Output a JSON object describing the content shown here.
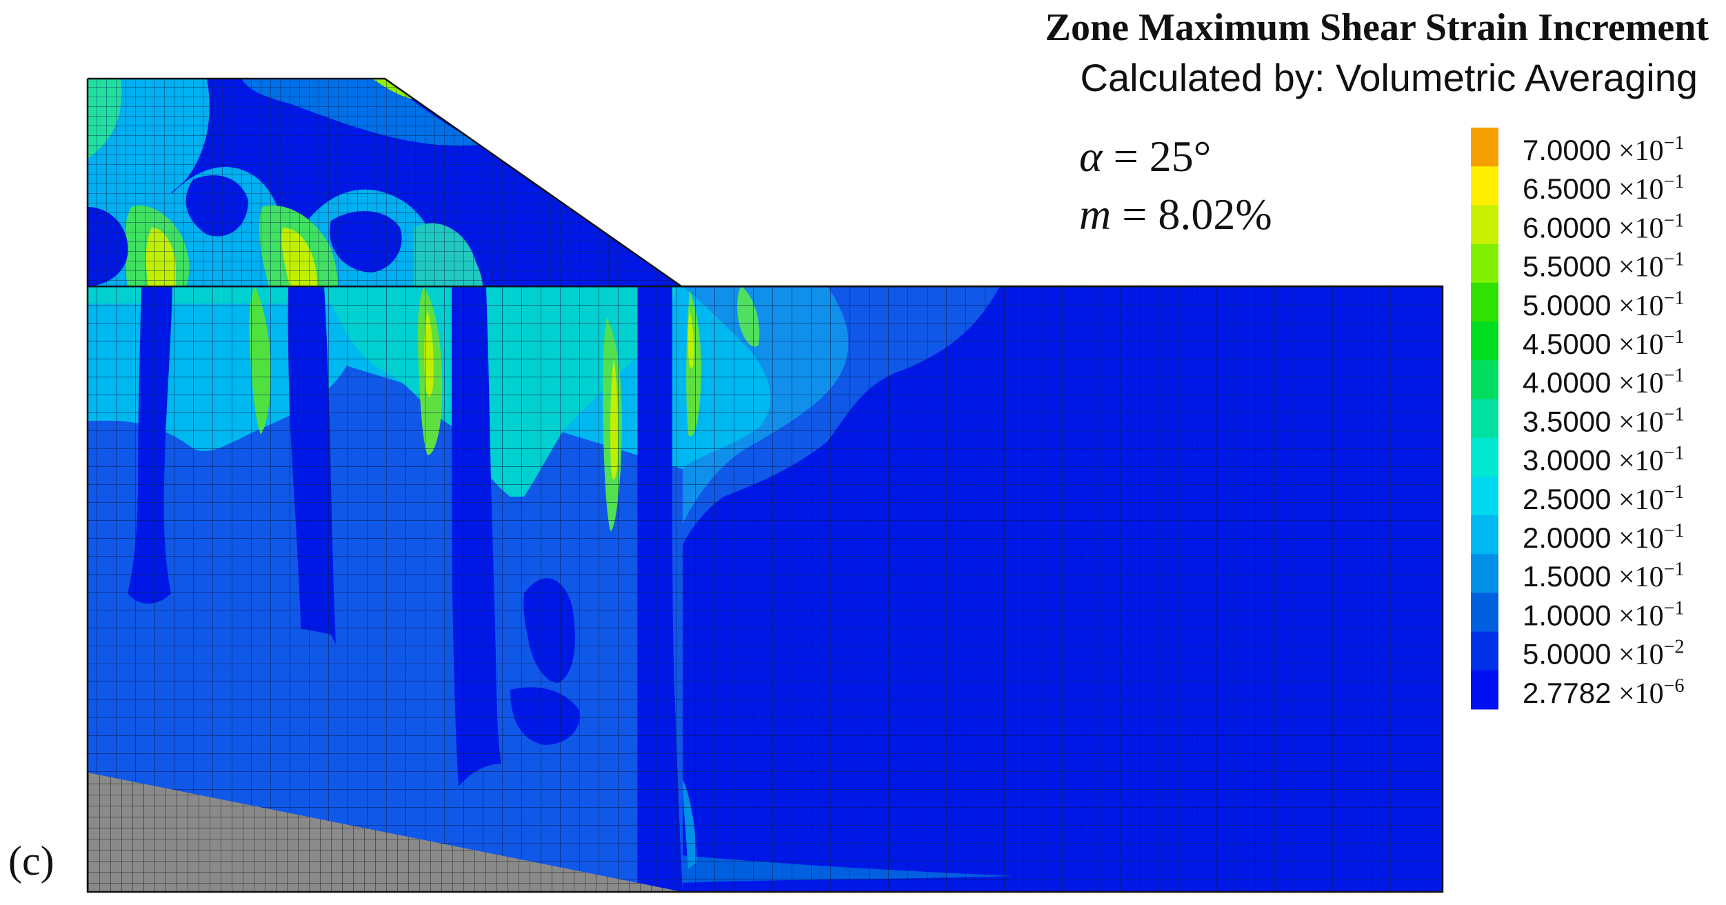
{
  "title": "Zone Maximum Shear Strain Increment",
  "subtitle": "Calculated by: Volumetric Averaging",
  "params": {
    "alpha_symbol": "α",
    "alpha_value": " = 25°",
    "m_symbol": "m",
    "m_value": " = 8.02%"
  },
  "panel_label": "(c)",
  "legend": [
    {
      "mantissa": "7.0000",
      "base": " ×10",
      "exponent": "−1",
      "color": "#f5a000"
    },
    {
      "mantissa": "6.5000",
      "base": " ×10",
      "exponent": "−1",
      "color": "#ffee00"
    },
    {
      "mantissa": "6.0000",
      "base": " ×10",
      "exponent": "−1",
      "color": "#c8f000"
    },
    {
      "mantissa": "5.5000",
      "base": " ×10",
      "exponent": "−1",
      "color": "#80f000"
    },
    {
      "mantissa": "5.0000",
      "base": " ×10",
      "exponent": "−1",
      "color": "#30e000"
    },
    {
      "mantissa": "4.5000",
      "base": " ×10",
      "exponent": "−1",
      "color": "#00dd20"
    },
    {
      "mantissa": "4.0000",
      "base": " ×10",
      "exponent": "−1",
      "color": "#00dd60"
    },
    {
      "mantissa": "3.5000",
      "base": " ×10",
      "exponent": "−1",
      "color": "#00e0a0"
    },
    {
      "mantissa": "3.0000",
      "base": " ×10",
      "exponent": "−1",
      "color": "#00e8d0"
    },
    {
      "mantissa": "2.5000",
      "base": " ×10",
      "exponent": "−1",
      "color": "#00d8f0"
    },
    {
      "mantissa": "2.0000",
      "base": " ×10",
      "exponent": "−1",
      "color": "#00b8f0"
    },
    {
      "mantissa": "1.5000",
      "base": " ×10",
      "exponent": "−1",
      "color": "#0090e8"
    },
    {
      "mantissa": "1.0000",
      "base": " ×10",
      "exponent": "−1",
      "color": "#0060e0"
    },
    {
      "mantissa": "5.0000",
      "base": " ×10",
      "exponent": "−2",
      "color": "#0030e8"
    },
    {
      "mantissa": "2.7782",
      "base": " ×10",
      "exponent": "−6",
      "color": "#0010f0"
    }
  ]
}
